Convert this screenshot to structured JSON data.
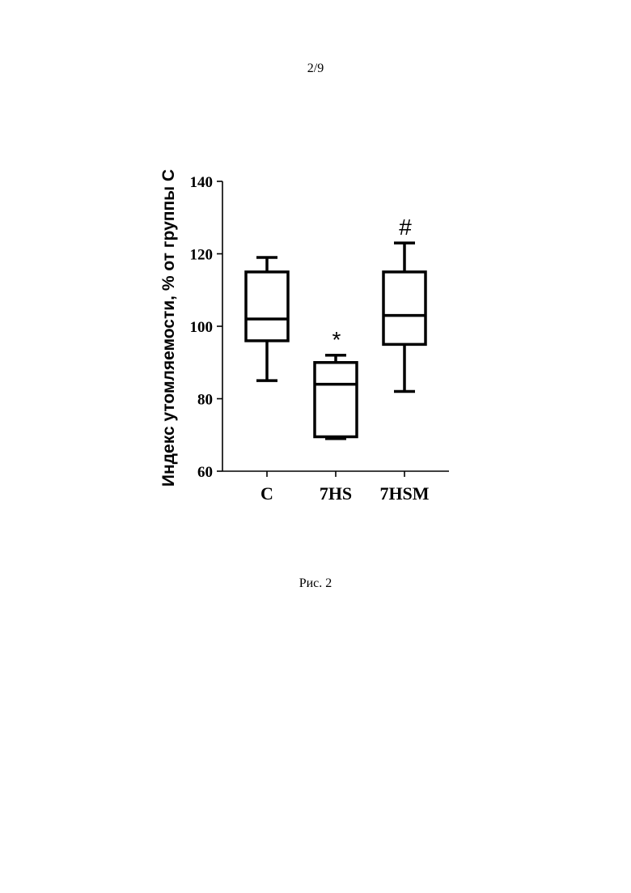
{
  "page": {
    "page_number": "2/9",
    "caption": "Рис. 2"
  },
  "chart_data": {
    "type": "box",
    "title": "",
    "xlabel": "",
    "ylabel": "Индекс утомляемости, % от группы С",
    "ylim": [
      60,
      140
    ],
    "yticks": [
      60,
      80,
      100,
      120,
      140
    ],
    "categories": [
      "C",
      "7HS",
      "7HSM"
    ],
    "boxes": [
      {
        "category": "C",
        "min": 85,
        "q1": 96,
        "median": 102,
        "q3": 115,
        "max": 119,
        "annotation": ""
      },
      {
        "category": "7HS",
        "min": 69,
        "q1": 69.5,
        "median": 84,
        "q3": 90,
        "max": 92,
        "annotation": "*"
      },
      {
        "category": "7HSM",
        "min": 82,
        "q1": 95,
        "median": 103,
        "q3": 115,
        "max": 123,
        "annotation": "#"
      }
    ],
    "grid": false,
    "legend": "none"
  }
}
